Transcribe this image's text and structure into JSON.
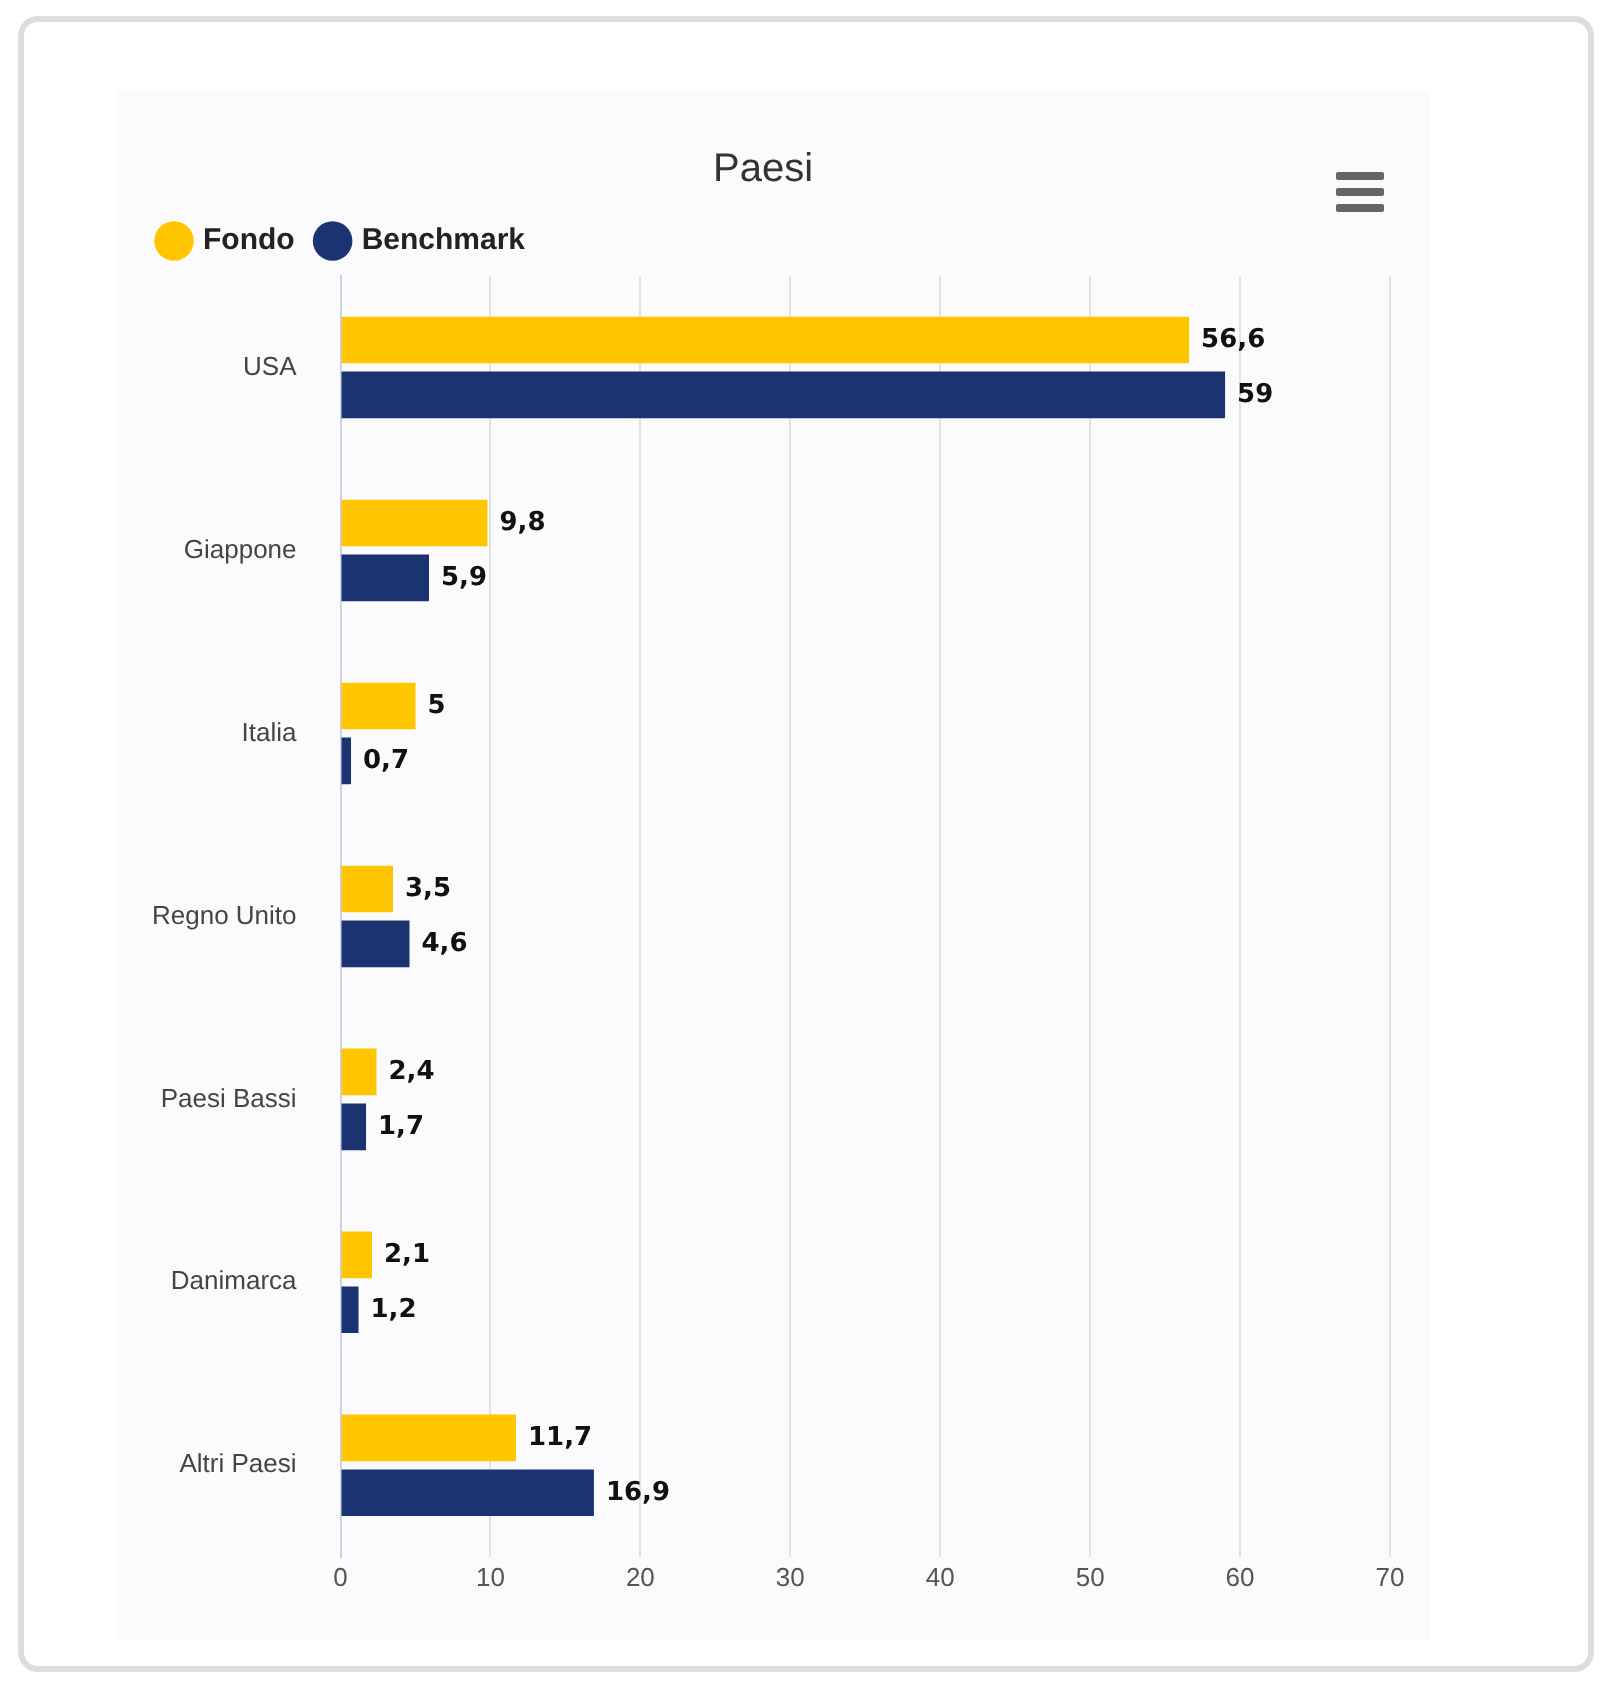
{
  "chart_data": {
    "type": "bar",
    "title": "Paesi",
    "orientation": "horizontal",
    "categories": [
      "USA",
      "Giappone",
      "Italia",
      "Regno Unito",
      "Paesi Bassi",
      "Danimarca",
      "Altri Paesi"
    ],
    "series": [
      {
        "name": "Fondo",
        "color": "#ffc600",
        "values": [
          56.6,
          9.8,
          5,
          3.5,
          2.4,
          2.1,
          11.7
        ],
        "value_labels": [
          "56,6",
          "9,8",
          "5",
          "3,5",
          "2,4",
          "2,1",
          "11,7"
        ]
      },
      {
        "name": "Benchmark",
        "color": "#1b3370",
        "values": [
          59,
          5.9,
          0.7,
          4.6,
          1.7,
          1.2,
          16.9
        ],
        "value_labels": [
          "59",
          "5,9",
          "0,7",
          "4,6",
          "1,7",
          "1,2",
          "16,9"
        ]
      }
    ],
    "xlim": [
      0,
      70
    ],
    "xticks": [
      0,
      10,
      20,
      30,
      40,
      50,
      60,
      70
    ],
    "grid": "x",
    "legend": "top left"
  }
}
